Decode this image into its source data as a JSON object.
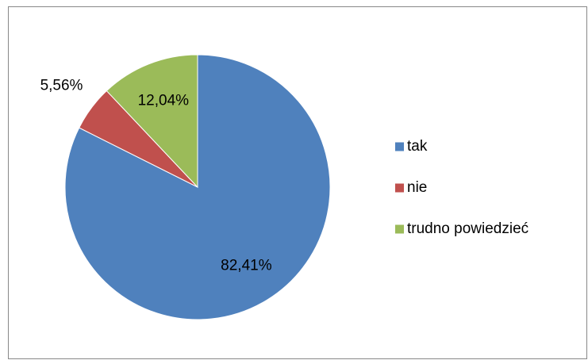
{
  "chart_data": {
    "type": "pie",
    "categories": [
      "tak",
      "nie",
      "trudno powiedzieć"
    ],
    "values": [
      82.41,
      5.56,
      12.04
    ],
    "value_labels": [
      "82,41%",
      "5,56%",
      "12,04%"
    ],
    "colors": [
      "#4f81bd",
      "#c0504d",
      "#9bbb59"
    ],
    "legend": "right"
  }
}
